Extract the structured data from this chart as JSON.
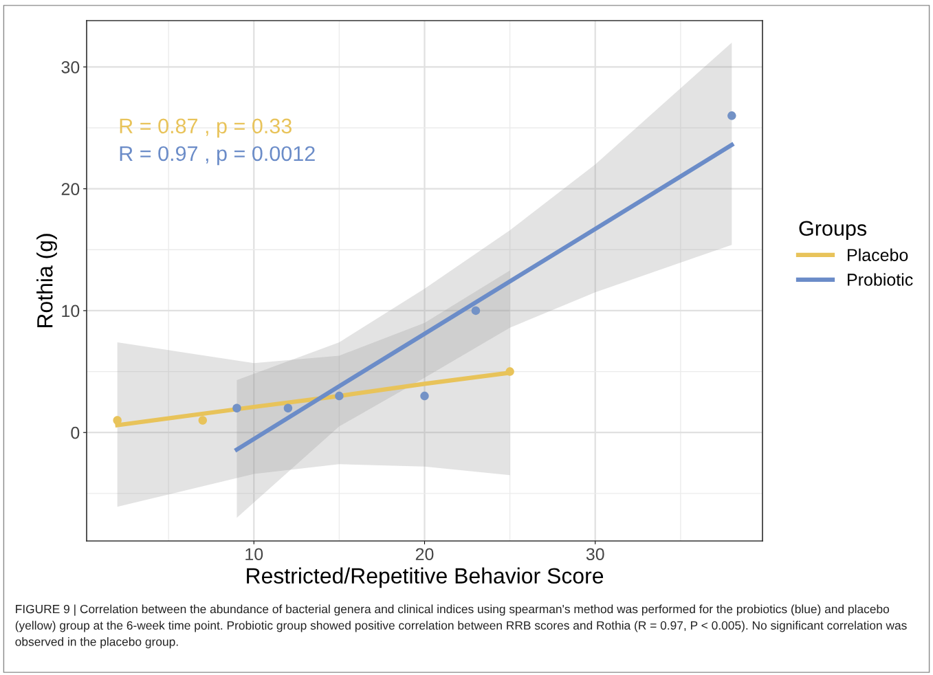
{
  "chart_data": {
    "type": "scatter",
    "xlabel": "Restricted/Repetitive Behavior Score",
    "ylabel": "Rothia (g)",
    "legend_title": "Groups",
    "legend": "right",
    "grid": true,
    "xlim": [
      0.2,
      39.8
    ],
    "xticks": [
      10,
      20,
      30
    ],
    "ylim": [
      -8.9,
      33.8
    ],
    "yticks": [
      0,
      10,
      20,
      30
    ],
    "series": [
      {
        "marker": "circle",
        "color": "#e8c35a",
        "x": [
          2,
          7,
          25
        ],
        "values": [
          1,
          1,
          5
        ]
      },
      {
        "marker": "circle",
        "color": "#7392c6",
        "x": [
          9,
          12,
          15,
          20,
          23,
          38
        ],
        "values": [
          2,
          2,
          3,
          3,
          10,
          26
        ]
      },
      {
        "type": "line",
        "name": "Placebo",
        "color": "#e8c35a",
        "x": [
          2,
          10,
          15,
          20,
          25
        ],
        "values": [
          0.6,
          2.1,
          3.0,
          4.0,
          4.9
        ],
        "lower": [
          -6.1,
          -3.4,
          -2.6,
          -2.8,
          -3.5
        ],
        "upper": [
          7.4,
          5.7,
          6.3,
          9.0,
          13.3
        ]
      },
      {
        "type": "line",
        "name": "Probiotic",
        "color": "#6b8cc8",
        "x": [
          9,
          15,
          20,
          25,
          30,
          38
        ],
        "values": [
          -1.4,
          3.8,
          8.1,
          12.4,
          16.7,
          23.6
        ],
        "lower": [
          -7.0,
          0.5,
          4.5,
          8.6,
          11.5,
          15.4
        ],
        "upper": [
          4.3,
          7.4,
          11.8,
          16.6,
          22.0,
          32.0
        ]
      }
    ],
    "annotations": [
      "R = 0.87 , p = 0.33",
      "R = 0.97 , p = 0.0012",
      "FIGURE 9 | Correlation between the abundance of bacterial genera and clinical indices using spearman's method was performed for the probiotics (blue) and placebo (yellow) group at the 6-week time point. Probiotic group showed positive correlation between RRB scores and Rothia (R = 0.97, P < 0.005). No significant correlation was observed in the placebo group."
    ]
  }
}
